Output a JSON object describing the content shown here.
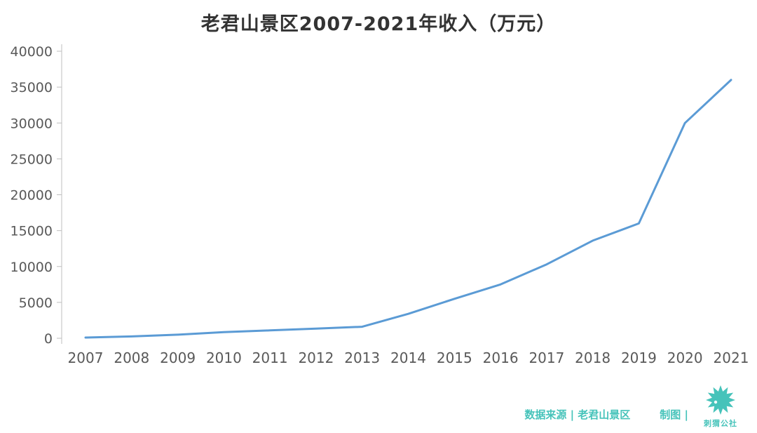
{
  "title": "老君山景区2007-2021年收入（万元）",
  "footer": {
    "source_label": "数据来源 | 老君山景区",
    "credit_label": "制图 |",
    "logo_text": "刺猬公社"
  },
  "colors": {
    "line": "#5B9BD5",
    "axis_text": "#595959",
    "axis_line": "#BFBFBF",
    "accent": "#46C3BA",
    "title": "#333333"
  },
  "chart_data": {
    "type": "line",
    "title": "老君山景区2007-2021年收入（万元）",
    "x": [
      2007,
      2008,
      2009,
      2010,
      2011,
      2012,
      2013,
      2014,
      2015,
      2016,
      2017,
      2018,
      2019,
      2020,
      2021
    ],
    "series": [
      {
        "name": "收入（万元）",
        "values": [
          100,
          250,
          500,
          850,
          1100,
          1350,
          1600,
          3400,
          5500,
          7500,
          10300,
          13600,
          16000,
          30000,
          36000
        ]
      }
    ],
    "xlabel": "",
    "ylabel": "",
    "ylim": [
      0,
      40000
    ],
    "yticks": [
      0,
      5000,
      10000,
      15000,
      20000,
      25000,
      30000,
      35000,
      40000
    ],
    "grid": false,
    "legend": false,
    "line_color": "#5B9BD5"
  }
}
